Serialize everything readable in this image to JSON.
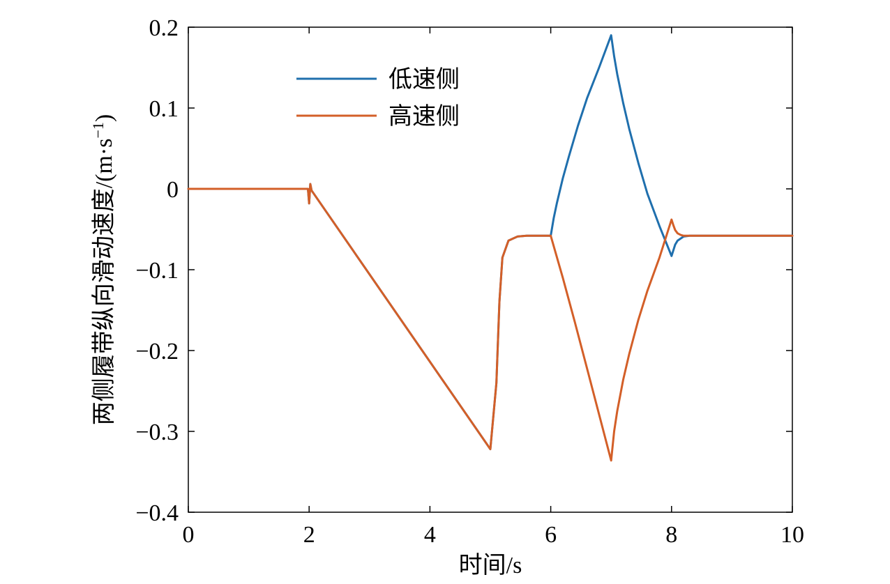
{
  "chart_data": {
    "type": "line",
    "title": "",
    "xlabel": "时间/s",
    "ylabel_main": "两侧履带纵向滑动速度/(m·s",
    "ylabel_sup": "−1",
    "ylabel_tail": ")",
    "xlim": [
      0,
      10
    ],
    "ylim": [
      -0.4,
      0.2
    ],
    "xticks": [
      0,
      2,
      4,
      6,
      8,
      10
    ],
    "xtick_labels": [
      "0",
      "2",
      "4",
      "6",
      "8",
      "10"
    ],
    "yticks": [
      0.2,
      0.1,
      0,
      -0.1,
      -0.2,
      -0.3,
      -0.4
    ],
    "ytick_labels": [
      "0.2",
      "0.1",
      "0",
      "−0.1",
      "−0.2",
      "−0.3",
      "−0.4"
    ],
    "grid": false,
    "legend_position": "top-left",
    "series": [
      {
        "name": "低速侧",
        "color": "#1f6fad",
        "x": [
          0,
          1.98,
          2.0,
          2.02,
          2.04,
          5.0,
          5.1,
          5.15,
          5.2,
          5.3,
          5.45,
          5.6,
          6.0,
          6.05,
          6.1,
          6.2,
          6.3,
          6.45,
          6.6,
          6.8,
          7.0,
          7.05,
          7.1,
          7.2,
          7.3,
          7.45,
          7.6,
          7.8,
          8.0,
          8.03,
          8.06,
          8.1,
          8.2,
          8.3,
          10
        ],
        "y": [
          0,
          0,
          -0.018,
          0.006,
          -0.002,
          -0.322,
          -0.24,
          -0.14,
          -0.085,
          -0.064,
          -0.059,
          -0.058,
          -0.058,
          -0.036,
          -0.018,
          0.013,
          0.04,
          0.078,
          0.112,
          0.15,
          0.19,
          0.164,
          0.142,
          0.106,
          0.074,
          0.032,
          -0.006,
          -0.046,
          -0.083,
          -0.076,
          -0.069,
          -0.064,
          -0.059,
          -0.058,
          -0.058
        ]
      },
      {
        "name": "高速侧",
        "color": "#d35f28",
        "x": [
          0,
          1.98,
          2.0,
          2.02,
          2.04,
          5.0,
          5.1,
          5.15,
          5.2,
          5.3,
          5.45,
          5.6,
          6.0,
          6.2,
          6.4,
          6.6,
          6.8,
          7.0,
          7.05,
          7.1,
          7.2,
          7.3,
          7.45,
          7.6,
          7.8,
          8.0,
          8.03,
          8.06,
          8.1,
          8.15,
          8.2,
          8.3,
          10
        ],
        "y": [
          0,
          0,
          -0.018,
          0.006,
          -0.002,
          -0.322,
          -0.24,
          -0.14,
          -0.085,
          -0.064,
          -0.059,
          -0.058,
          -0.058,
          -0.11,
          -0.165,
          -0.222,
          -0.279,
          -0.336,
          -0.3,
          -0.275,
          -0.236,
          -0.204,
          -0.162,
          -0.126,
          -0.085,
          -0.038,
          -0.045,
          -0.051,
          -0.055,
          -0.057,
          -0.058,
          -0.058,
          -0.058
        ]
      }
    ]
  }
}
